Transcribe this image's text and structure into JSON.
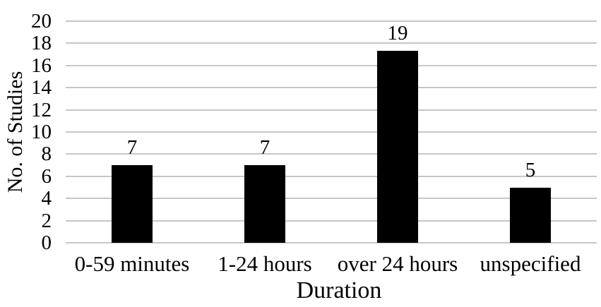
{
  "chart_data": {
    "type": "bar",
    "title": "",
    "categories": [
      "0-59 minutes",
      "1-24 hours",
      "over 24 hours",
      "unspecified"
    ],
    "values": [
      7,
      7,
      19,
      5
    ],
    "xlabel": "Duration",
    "ylabel": "No. of Studies",
    "ylim": [
      0,
      20
    ],
    "ytick_step": 2,
    "ytick_labels": [
      "0",
      "2",
      "4",
      "6",
      "8",
      "10",
      "12",
      "14",
      "16",
      "18",
      "20"
    ],
    "data_labels": [
      "7",
      "7",
      "19",
      "5"
    ],
    "grid": "horizontal",
    "legend_position": "none",
    "bar_color": "#000000",
    "gridline_color": "#c6c6c6",
    "text_color": "#000000",
    "background_color": "#ffffff"
  }
}
